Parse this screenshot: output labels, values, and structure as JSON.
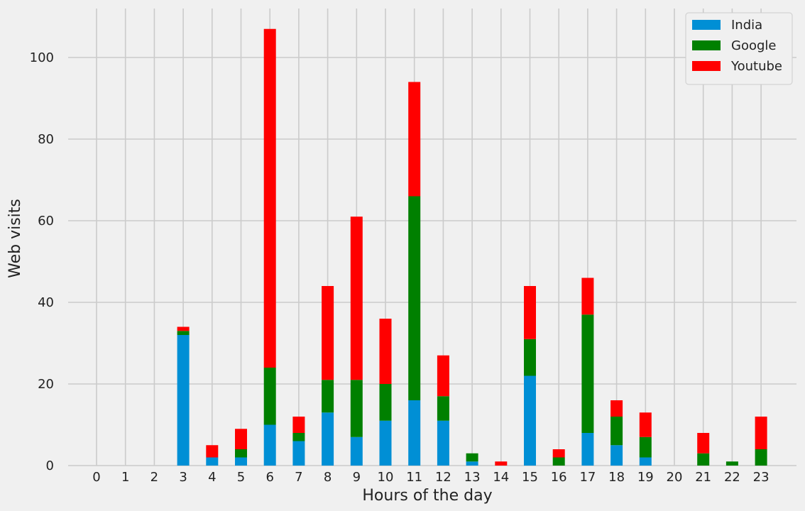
{
  "chart_data": {
    "type": "bar",
    "stacked": true,
    "title": "",
    "xlabel": "Hours of the day",
    "ylabel": "Web visits",
    "categories": [
      "0",
      "1",
      "2",
      "3",
      "4",
      "5",
      "6",
      "7",
      "8",
      "9",
      "10",
      "11",
      "12",
      "13",
      "14",
      "15",
      "16",
      "17",
      "18",
      "19",
      "20",
      "21",
      "22",
      "23"
    ],
    "series": [
      {
        "name": "India",
        "color": "#008fd5",
        "values": [
          0,
          0,
          0,
          32,
          2,
          2,
          10,
          6,
          13,
          7,
          11,
          16,
          11,
          1,
          0,
          22,
          0,
          8,
          5,
          2,
          0,
          0,
          0,
          0
        ]
      },
      {
        "name": "Google",
        "color": "#008000",
        "values": [
          0,
          0,
          0,
          1,
          0,
          2,
          14,
          2,
          8,
          14,
          9,
          50,
          6,
          2,
          0,
          9,
          2,
          29,
          7,
          5,
          0,
          3,
          1,
          4
        ]
      },
      {
        "name": "Youtube",
        "color": "#ff0000",
        "values": [
          0,
          0,
          0,
          1,
          3,
          5,
          83,
          4,
          23,
          40,
          16,
          28,
          10,
          0,
          1,
          13,
          2,
          9,
          4,
          6,
          0,
          5,
          0,
          8
        ]
      }
    ],
    "ylim": [
      0,
      112
    ],
    "yticks": [
      0,
      20,
      40,
      60,
      80,
      100
    ],
    "grid": true,
    "legend_position": "top-right",
    "background_color": "#f0f0f0",
    "grid_color": "#cbcbcb"
  }
}
